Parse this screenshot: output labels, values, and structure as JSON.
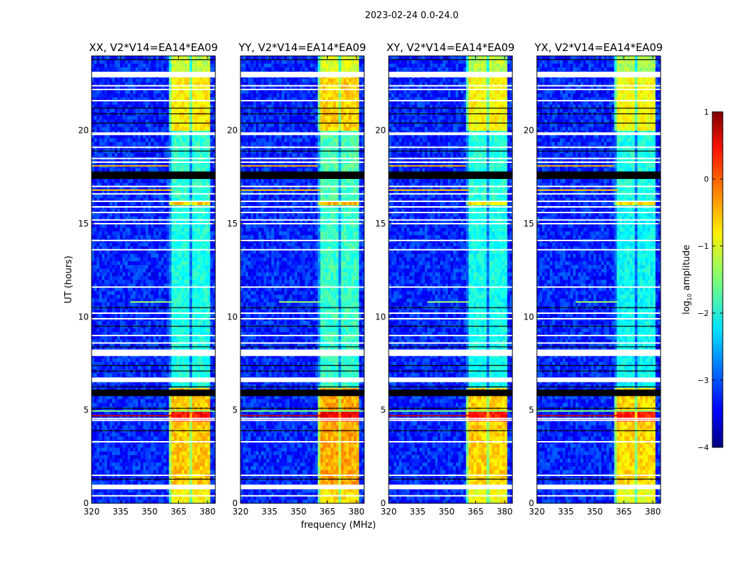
{
  "figure_title": "2023-02-24 0.0-24.0",
  "xlabel": "frequency (MHz)",
  "ylabel": "UT (hours)",
  "colorbar": {
    "label": "log10 amplitude",
    "label_main": "log",
    "label_sub": "10",
    "label_rest": " amplitude",
    "range": [
      -4,
      1
    ],
    "ticks": [
      1,
      0,
      -1,
      -2,
      -3,
      -4
    ],
    "tick_labels": [
      "1",
      "0",
      "−1",
      "−2",
      "−3",
      "−4"
    ],
    "colormap": "jet"
  },
  "chart_data": [
    {
      "type": "heatmap",
      "title": "XX, V2*V14=EA14*EA09",
      "band_offset": 0.0
    },
    {
      "type": "heatmap",
      "title": "YY, V2*V14=EA14*EA09",
      "band_offset": 0.15
    },
    {
      "type": "heatmap",
      "title": "XY, V2*V14=EA14*EA09",
      "band_offset": -0.05
    },
    {
      "type": "heatmap",
      "title": "YX, V2*V14=EA14*EA09",
      "band_offset": -0.1
    }
  ],
  "axes": {
    "xlim": [
      320,
      384
    ],
    "ylim": [
      0,
      24
    ],
    "xticks": [
      320,
      335,
      350,
      365,
      380
    ],
    "xtick_labels": [
      "320",
      "335",
      "350",
      "365",
      "380"
    ],
    "yticks": [
      0,
      5,
      10,
      15,
      20
    ],
    "ytick_labels": [
      "0",
      "5",
      "10",
      "15",
      "20"
    ]
  },
  "model": {
    "background_level": -3.2,
    "band_channels": [
      [
        362,
        366.3
      ],
      [
        366.7,
        371
      ],
      [
        371.4,
        376
      ],
      [
        376.4,
        381
      ]
    ],
    "band_levels": [
      {
        "t": [
          0,
          1.0
        ],
        "v": -0.9
      },
      {
        "t": [
          1.0,
          4.5
        ],
        "v": -0.6
      },
      {
        "t": [
          4.5,
          5.0
        ],
        "v": 0.3
      },
      {
        "t": [
          5.0,
          6.3
        ],
        "v": -0.6
      },
      {
        "t": [
          6.3,
          16.0
        ],
        "v": -2.0
      },
      {
        "t": [
          16.0,
          16.3
        ],
        "v": -0.6
      },
      {
        "t": [
          16.3,
          20.0
        ],
        "v": -1.9
      },
      {
        "t": [
          20.0,
          23.0
        ],
        "v": -0.8
      },
      {
        "t": [
          23.0,
          24
        ],
        "v": -1.2
      }
    ],
    "rfi_lines": [
      {
        "t": 4.7,
        "f": [
          320,
          362
        ],
        "v": 0.6
      },
      {
        "t": 4.95,
        "f": [
          320,
          384
        ],
        "v": -1.5
      },
      {
        "t": 16.8,
        "f": [
          320,
          362
        ],
        "v": -0.6
      },
      {
        "t": 18.1,
        "f": [
          320,
          360
        ],
        "v": -0.5
      },
      {
        "t": 10.8,
        "f": [
          340,
          362
        ],
        "v": -1.4
      },
      {
        "t": 19.85,
        "f": [
          320,
          384
        ],
        "v": -2.2
      }
    ],
    "flagged_intervals": [
      [
        0.75,
        1.0
      ],
      [
        6.5,
        6.75
      ],
      [
        7.9,
        8.25
      ],
      [
        19.75,
        19.9
      ],
      [
        22.85,
        23.15
      ]
    ],
    "flagged_lines": [
      0.4,
      1.5,
      3.3,
      4.45,
      4.55,
      8.6,
      9.0,
      9.9,
      10.2,
      11.6,
      13.6,
      14.1,
      15.0,
      15.2,
      15.6,
      15.9,
      16.2,
      16.6,
      17.0,
      18.3,
      18.5,
      19.1,
      21.6,
      22.2,
      22.4
    ],
    "zero_intervals": [
      [
        5.75,
        6.1
      ],
      [
        17.4,
        17.8
      ]
    ],
    "zero_lines": [
      1.3,
      3.9,
      5.1,
      6.25,
      7.1,
      7.4,
      8.4,
      9.5,
      10.5,
      18.9,
      20.4,
      20.9,
      21.2,
      23.8
    ]
  }
}
